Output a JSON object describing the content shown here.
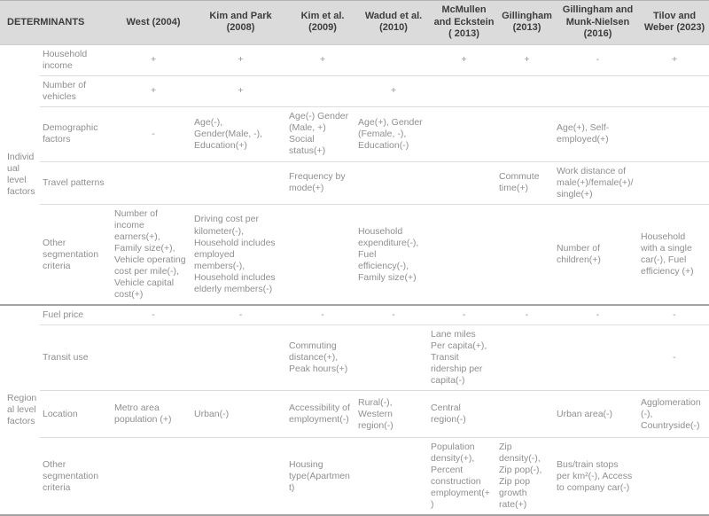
{
  "table": {
    "header": {
      "determinants_label": "DETERMINANTS",
      "studies": [
        "West (2004)",
        "Kim and Park (2008)",
        "Kim et al. (2009)",
        "Wadud et al. (2010)",
        "McMullen and Eckstein ( 2013)",
        "Gillingham (2013)",
        "Gillingham and Munk-Nielsen (2016)",
        "Tilov and Weber (2023)"
      ]
    },
    "sections": [
      {
        "label": "Individual level factors",
        "rows": [
          {
            "label": "Household income",
            "cells": [
              "+",
              "+",
              "+",
              "",
              "+",
              "+",
              "-",
              "+"
            ]
          },
          {
            "label": "Number of vehicles",
            "cells": [
              "+",
              "+",
              "",
              "+",
              "",
              "",
              "",
              ""
            ]
          },
          {
            "label": "Demographic factors",
            "cells": [
              "-",
              "Age(-), Gender(Male, -), Education(+)",
              "Age(-) Gender (Male, +) Social status(+)",
              "Age(+), Gender (Female, -), Education(-)",
              "",
              "",
              "Age(+), Self-employed(+)",
              ""
            ]
          },
          {
            "label": "Travel patterns",
            "cells": [
              "",
              "",
              "Frequency by mode(+)",
              "",
              "",
              "Commute time(+)",
              "Work distance of male(+)/female(+)/ single(+)",
              ""
            ]
          },
          {
            "label": "Other segmentation criteria",
            "cells": [
              "Number of income earners(+), Family size(+), Vehicle operating cost per mile(-), Vehicle capital cost(+)",
              "Driving cost per kilometer(-), Household includes employed members(-), Household includes elderly members(-)",
              "",
              "Household expenditure(-), Fuel efficiency(-), Family size(+)",
              "",
              "",
              "Number of children(+)",
              "Household with a single car(-), Fuel efficiency (+)"
            ]
          }
        ]
      },
      {
        "label": "Regional level factors",
        "rows": [
          {
            "label": "Fuel price",
            "cells": [
              "-",
              "-",
              "-",
              "-",
              "-",
              "-",
              "-",
              "-"
            ]
          },
          {
            "label": "Transit use",
            "cells": [
              "",
              "",
              "Commuting distance(+), Peak hours(+)",
              "",
              "Lane miles Per capita(+), Transit ridership per capita(-)",
              "",
              "",
              "-"
            ]
          },
          {
            "label": "Location",
            "cells": [
              "Metro area population (+)",
              "Urban(-)",
              "Accessibility of employment(-)",
              "Rural(-), Western region(-)",
              "Central region(-)",
              "",
              "Urban area(-)",
              "Agglomeration(-), Countryside(-)"
            ]
          },
          {
            "label": "Other segmentation criteria",
            "cells": [
              "",
              "",
              "Housing type(Apartment)",
              "",
              "Population density(+), Percent construction employment(+)",
              "Zip density(-), Zip pop(-), Zip pop growth rate(+)",
              "Bus/train stops per km²(-), Access to company car(-)",
              ""
            ]
          }
        ]
      }
    ]
  }
}
